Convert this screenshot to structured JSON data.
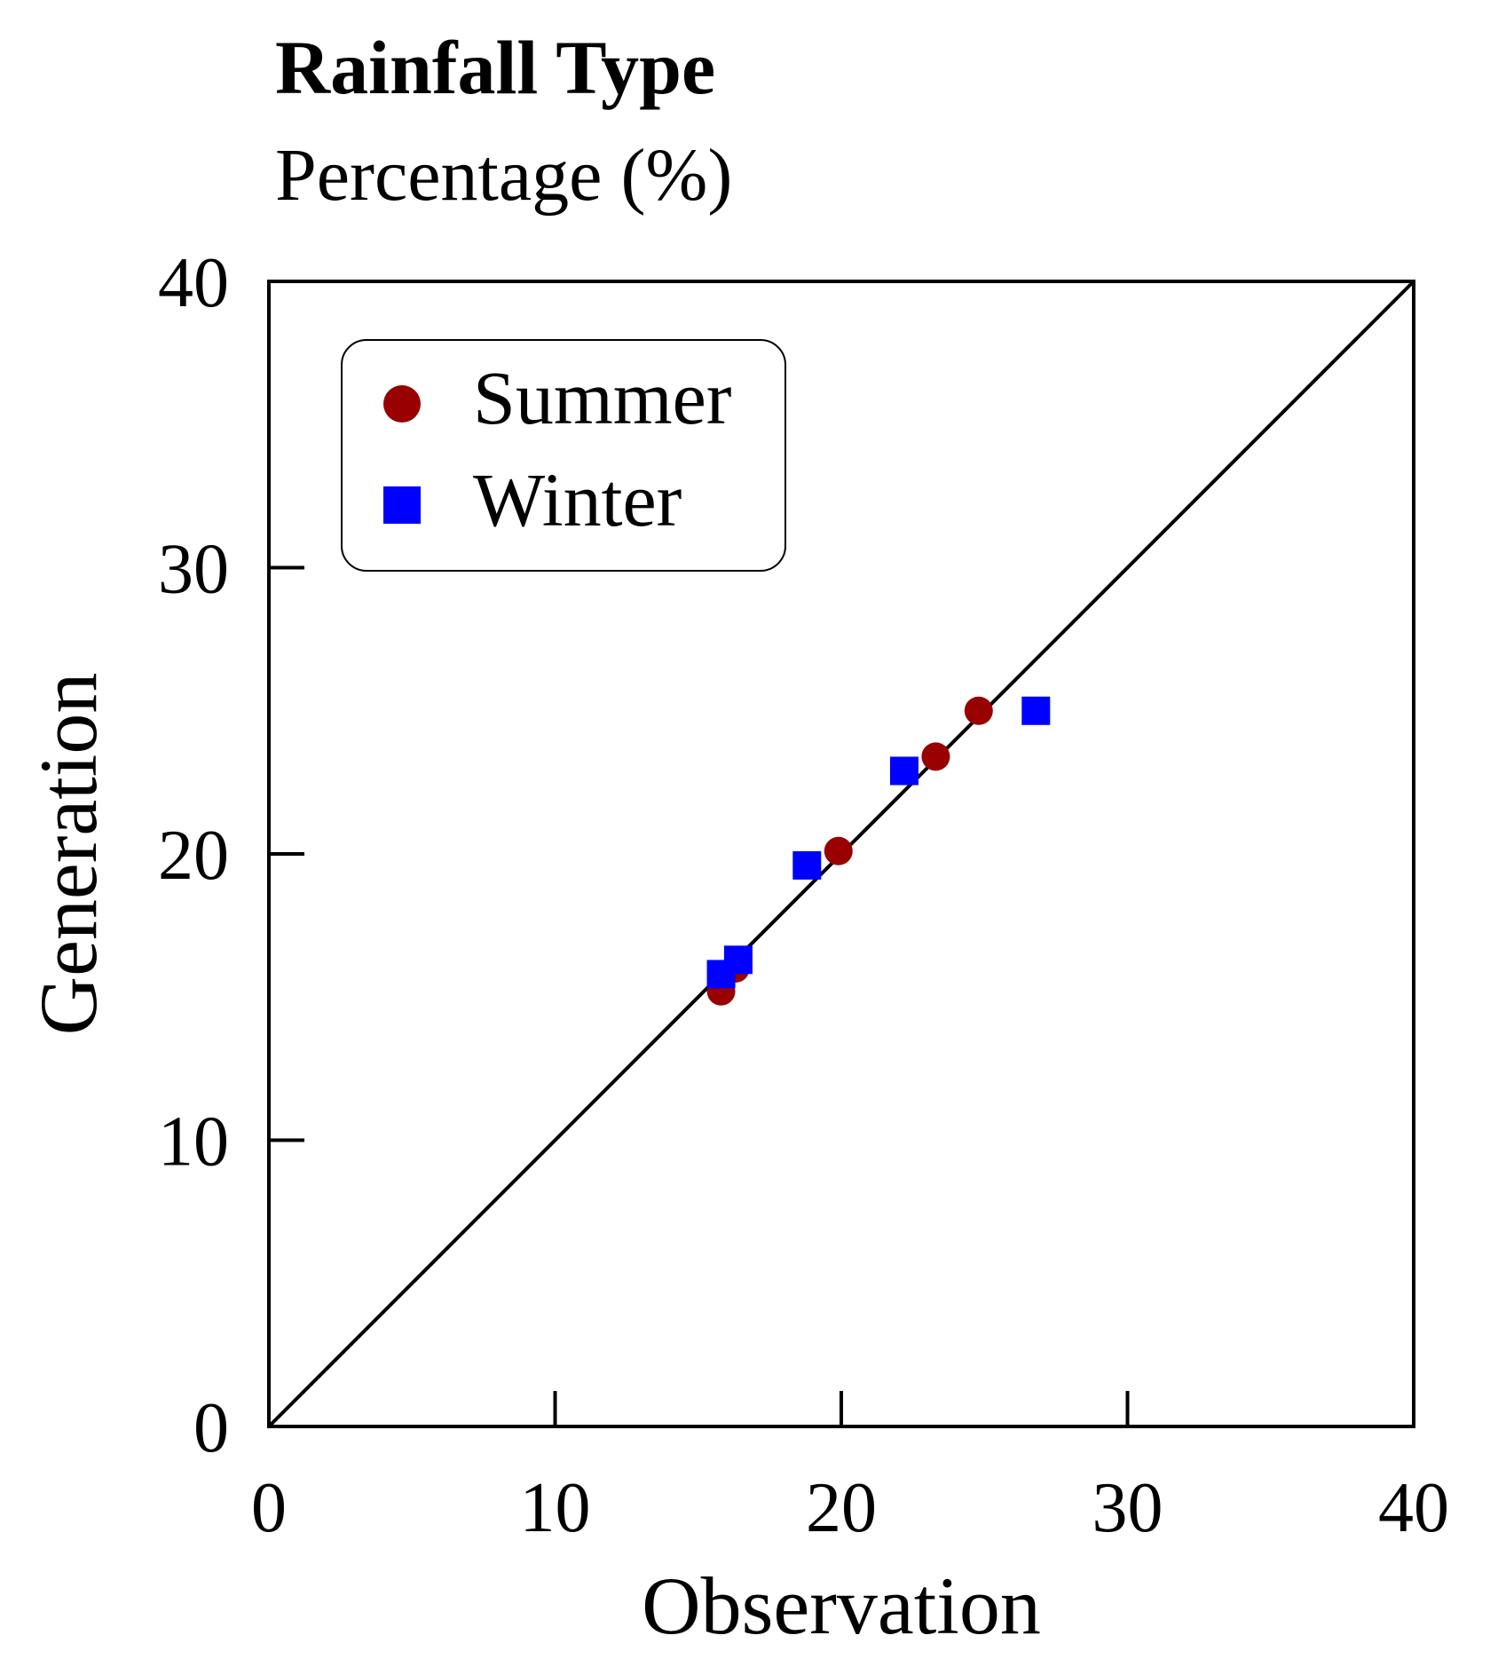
{
  "chart_data": {
    "type": "scatter",
    "title": "Rainfall Type",
    "subtitle": "Percentage (%)",
    "xlabel": "Observation",
    "ylabel": "Generation",
    "xlim": [
      0,
      40
    ],
    "ylim": [
      0,
      40
    ],
    "xticks": [
      0,
      10,
      20,
      30,
      40
    ],
    "yticks": [
      0,
      10,
      20,
      30,
      40
    ],
    "xtick_labels": [
      "0",
      "10",
      "20",
      "30",
      "40"
    ],
    "ytick_labels": [
      "0",
      "10",
      "20",
      "30",
      "40"
    ],
    "grid": false,
    "reference_line": {
      "from": [
        0,
        0
      ],
      "to": [
        40,
        40
      ]
    },
    "legend": {
      "position": "top-left",
      "entries": [
        "Summer",
        "Winter"
      ]
    },
    "series": [
      {
        "name": "Summer",
        "marker": "circle",
        "color": "#990000",
        "x": [
          15.8,
          16.3,
          19.9,
          23.3,
          24.8
        ],
        "y": [
          15.2,
          16.0,
          20.1,
          23.4,
          25.0
        ]
      },
      {
        "name": "Winter",
        "marker": "square",
        "color": "#0000ff",
        "x": [
          15.8,
          16.4,
          18.8,
          22.2,
          26.8
        ],
        "y": [
          15.8,
          16.3,
          19.6,
          22.9,
          25.0
        ]
      }
    ]
  }
}
